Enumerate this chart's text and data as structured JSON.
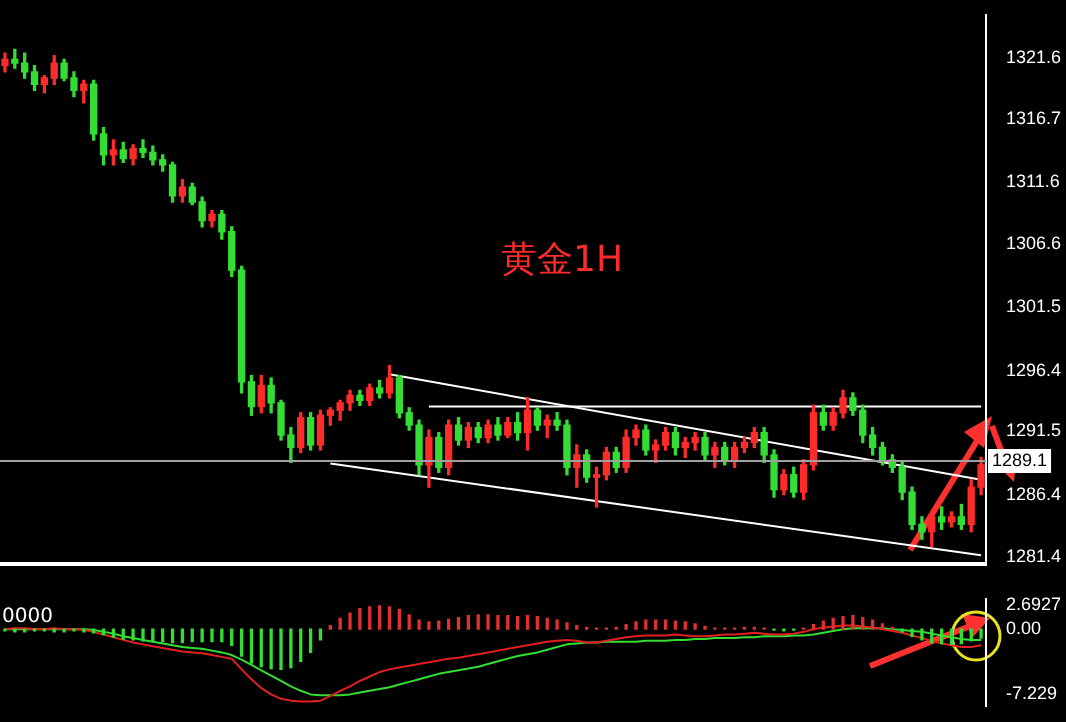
{
  "chart_data": [
    {
      "type": "candlestick",
      "categories": [
        null,
        null,
        null,
        null,
        null,
        null,
        null,
        null,
        null,
        null,
        null,
        null,
        null,
        null,
        null,
        null,
        null,
        null,
        null,
        null,
        null,
        null,
        null,
        null,
        null,
        null,
        null,
        null,
        null,
        null,
        null,
        null,
        null,
        null,
        null,
        null,
        null,
        null,
        null,
        null,
        null,
        null,
        null,
        null,
        null,
        null,
        null,
        null,
        null,
        null,
        null,
        null,
        null,
        null,
        null,
        null,
        null,
        null,
        null,
        null,
        null,
        null,
        null,
        null,
        null,
        null,
        null,
        null,
        null,
        null,
        null,
        null,
        null,
        null,
        null,
        null,
        null,
        null,
        null,
        null,
        null,
        null,
        null,
        null,
        null,
        null,
        null,
        null,
        null,
        null,
        null,
        null,
        null,
        null,
        null,
        null,
        null,
        null,
        null,
        null
      ],
      "ohlc": [
        [
          1321.0,
          1322.0,
          1320.5,
          1321.5
        ],
        [
          1321.5,
          1322.3,
          1320.8,
          1321.2
        ],
        [
          1321.2,
          1322.0,
          1320.0,
          1320.5
        ],
        [
          1320.5,
          1321.0,
          1319.0,
          1319.5
        ],
        [
          1319.5,
          1320.2,
          1318.8,
          1320.0
        ],
        [
          1320.0,
          1321.8,
          1319.5,
          1321.2
        ],
        [
          1321.2,
          1321.5,
          1319.8,
          1320.0
        ],
        [
          1320.0,
          1320.5,
          1318.5,
          1319.0
        ],
        [
          1319.0,
          1319.8,
          1318.0,
          1319.5
        ],
        [
          1319.5,
          1319.8,
          1315.0,
          1315.5
        ],
        [
          1315.5,
          1316.0,
          1313.0,
          1313.8
        ],
        [
          1313.8,
          1315.0,
          1313.0,
          1314.2
        ],
        [
          1314.2,
          1314.8,
          1313.2,
          1313.5
        ],
        [
          1313.5,
          1314.6,
          1313.0,
          1314.3
        ],
        [
          1314.3,
          1315.0,
          1313.6,
          1314.0
        ],
        [
          1314.0,
          1314.5,
          1313.0,
          1313.4
        ],
        [
          1313.4,
          1313.8,
          1312.5,
          1313.0
        ],
        [
          1313.0,
          1313.2,
          1310.0,
          1310.5
        ],
        [
          1310.5,
          1311.8,
          1310.0,
          1311.2
        ],
        [
          1311.2,
          1311.5,
          1309.8,
          1310.0
        ],
        [
          1310.0,
          1310.4,
          1308.0,
          1308.5
        ],
        [
          1308.5,
          1309.3,
          1308.0,
          1309.0
        ],
        [
          1309.0,
          1309.3,
          1307.0,
          1307.6
        ],
        [
          1307.6,
          1308.0,
          1304.0,
          1304.5
        ],
        [
          1304.5,
          1304.8,
          1294.6,
          1295.5
        ],
        [
          1295.5,
          1296.0,
          1292.8,
          1293.5
        ],
        [
          1293.5,
          1296.0,
          1293.0,
          1295.2
        ],
        [
          1295.2,
          1295.8,
          1293.0,
          1293.8
        ],
        [
          1293.8,
          1294.0,
          1290.8,
          1291.2
        ],
        [
          1291.2,
          1291.8,
          1289.0,
          1290.2
        ],
        [
          1290.2,
          1293.0,
          1289.8,
          1292.6
        ],
        [
          1292.6,
          1293.0,
          1290.0,
          1290.4
        ],
        [
          1290.4,
          1293.2,
          1290.0,
          1292.8
        ],
        [
          1292.8,
          1293.4,
          1292.0,
          1293.2
        ],
        [
          1293.2,
          1294.0,
          1292.4,
          1293.8
        ],
        [
          1293.8,
          1294.8,
          1293.2,
          1294.4
        ],
        [
          1294.4,
          1294.8,
          1293.6,
          1294.0
        ],
        [
          1294.0,
          1295.3,
          1293.6,
          1295.0
        ],
        [
          1295.0,
          1295.6,
          1294.2,
          1294.6
        ],
        [
          1294.6,
          1296.8,
          1294.2,
          1295.8
        ],
        [
          1295.8,
          1296.0,
          1292.6,
          1293.0
        ],
        [
          1293.0,
          1293.4,
          1291.6,
          1292.0
        ],
        [
          1292.0,
          1292.4,
          1288.0,
          1288.8
        ],
        [
          1288.8,
          1291.6,
          1287.0,
          1291.0
        ],
        [
          1291.0,
          1291.4,
          1288.2,
          1288.6
        ],
        [
          1288.6,
          1292.4,
          1288.0,
          1292.0
        ],
        [
          1292.0,
          1292.6,
          1290.4,
          1290.8
        ],
        [
          1290.8,
          1292.2,
          1290.2,
          1291.8
        ],
        [
          1291.8,
          1292.2,
          1290.6,
          1291.0
        ],
        [
          1291.0,
          1292.4,
          1290.6,
          1292.0
        ],
        [
          1292.0,
          1292.6,
          1290.8,
          1291.2
        ],
        [
          1291.2,
          1292.6,
          1291.0,
          1292.2
        ],
        [
          1292.2,
          1293.0,
          1290.8,
          1291.4
        ],
        [
          1291.4,
          1294.2,
          1290.0,
          1293.2
        ],
        [
          1293.2,
          1293.4,
          1291.6,
          1292.0
        ],
        [
          1292.0,
          1292.8,
          1291.0,
          1292.4
        ],
        [
          1292.4,
          1293.0,
          1291.6,
          1292.0
        ],
        [
          1292.0,
          1292.4,
          1288.0,
          1288.6
        ],
        [
          1288.6,
          1290.4,
          1287.0,
          1289.6
        ],
        [
          1289.6,
          1290.0,
          1287.4,
          1287.8
        ],
        [
          1287.8,
          1288.6,
          1285.4,
          1288.0
        ],
        [
          1288.0,
          1290.2,
          1287.6,
          1289.8
        ],
        [
          1289.8,
          1290.2,
          1288.2,
          1288.6
        ],
        [
          1288.6,
          1291.6,
          1288.2,
          1291.0
        ],
        [
          1291.0,
          1292.0,
          1290.4,
          1291.6
        ],
        [
          1291.6,
          1292.0,
          1289.6,
          1290.0
        ],
        [
          1290.0,
          1290.8,
          1289.0,
          1290.4
        ],
        [
          1290.4,
          1291.8,
          1290.0,
          1291.4
        ],
        [
          1291.4,
          1291.8,
          1289.6,
          1290.2
        ],
        [
          1290.2,
          1291.0,
          1289.4,
          1290.6
        ],
        [
          1290.6,
          1291.4,
          1290.0,
          1291.0
        ],
        [
          1291.0,
          1291.4,
          1289.2,
          1289.6
        ],
        [
          1289.6,
          1290.6,
          1288.6,
          1290.2
        ],
        [
          1290.2,
          1290.6,
          1288.8,
          1289.2
        ],
        [
          1289.2,
          1290.6,
          1288.6,
          1290.2
        ],
        [
          1290.2,
          1291.0,
          1289.8,
          1290.6
        ],
        [
          1290.6,
          1291.8,
          1290.2,
          1291.4
        ],
        [
          1291.4,
          1291.8,
          1289.0,
          1289.6
        ],
        [
          1289.6,
          1290.0,
          1286.2,
          1286.8
        ],
        [
          1286.8,
          1288.4,
          1286.4,
          1288.0
        ],
        [
          1288.0,
          1288.6,
          1286.2,
          1286.6
        ],
        [
          1286.6,
          1289.2,
          1286.0,
          1288.8
        ],
        [
          1288.8,
          1293.6,
          1288.4,
          1293.0
        ],
        [
          1293.0,
          1293.6,
          1291.6,
          1292.0
        ],
        [
          1292.0,
          1293.4,
          1291.6,
          1293.0
        ],
        [
          1293.0,
          1294.8,
          1292.6,
          1294.2
        ],
        [
          1294.2,
          1294.6,
          1292.8,
          1293.2
        ],
        [
          1293.2,
          1293.6,
          1290.6,
          1291.2
        ],
        [
          1291.2,
          1291.8,
          1289.6,
          1290.2
        ],
        [
          1290.2,
          1290.6,
          1288.8,
          1289.2
        ],
        [
          1289.2,
          1289.6,
          1288.2,
          1288.6
        ],
        [
          1288.6,
          1289.0,
          1286.0,
          1286.6
        ],
        [
          1286.6,
          1287.0,
          1283.6,
          1284.0
        ],
        [
          1284.0,
          1284.6,
          1282.8,
          1283.4
        ],
        [
          1283.4,
          1285.0,
          1282.2,
          1284.6
        ],
        [
          1284.6,
          1285.4,
          1283.6,
          1284.2
        ],
        [
          1284.2,
          1285.0,
          1283.8,
          1284.6
        ],
        [
          1284.6,
          1285.6,
          1283.6,
          1284.0
        ],
        [
          1284.0,
          1287.6,
          1283.4,
          1287.0
        ],
        [
          1287.0,
          1289.4,
          1286.4,
          1288.8
        ]
      ],
      "colors": [
        "#ff2a2a",
        "#33dd33",
        "#33dd33",
        "#33dd33",
        "#ff2a2a",
        "#ff2a2a",
        "#33dd33",
        "#33dd33",
        "#ff2a2a",
        "#33dd33",
        "#33dd33",
        "#ff2a2a",
        "#33dd33",
        "#ff2a2a",
        "#33dd33",
        "#33dd33",
        "#33dd33",
        "#33dd33",
        "#ff2a2a",
        "#33dd33",
        "#33dd33",
        "#ff2a2a",
        "#33dd33",
        "#33dd33",
        "#33dd33",
        "#33dd33",
        "#ff2a2a",
        "#33dd33",
        "#33dd33",
        "#33dd33",
        "#ff2a2a",
        "#33dd33",
        "#ff2a2a",
        "#ff2a2a",
        "#ff2a2a",
        "#ff2a2a",
        "#33dd33",
        "#ff2a2a",
        "#33dd33",
        "#ff2a2a",
        "#33dd33",
        "#33dd33",
        "#33dd33",
        "#ff2a2a",
        "#33dd33",
        "#ff2a2a",
        "#33dd33",
        "#ff2a2a",
        "#33dd33",
        "#ff2a2a",
        "#33dd33",
        "#ff2a2a",
        "#33dd33",
        "#ff2a2a",
        "#33dd33",
        "#ff2a2a",
        "#33dd33",
        "#33dd33",
        "#ff2a2a",
        "#33dd33",
        "#ff2a2a",
        "#ff2a2a",
        "#33dd33",
        "#ff2a2a",
        "#ff2a2a",
        "#33dd33",
        "#ff2a2a",
        "#ff2a2a",
        "#33dd33",
        "#ff2a2a",
        "#ff2a2a",
        "#33dd33",
        "#ff2a2a",
        "#33dd33",
        "#ff2a2a",
        "#ff2a2a",
        "#ff2a2a",
        "#33dd33",
        "#33dd33",
        "#ff2a2a",
        "#33dd33",
        "#ff2a2a",
        "#ff2a2a",
        "#33dd33",
        "#ff2a2a",
        "#ff2a2a",
        "#33dd33",
        "#33dd33",
        "#33dd33",
        "#33dd33",
        "#33dd33",
        "#33dd33",
        "#33dd33",
        "#33dd33",
        "#ff2a2a",
        "#33dd33",
        "#ff2a2a",
        "#33dd33",
        "#ff2a2a",
        "#ff2a2a"
      ],
      "series": [
        {
          "type": "line",
          "color": "#ffffff",
          "values": [
            null,
            null,
            null,
            null,
            null,
            null,
            null,
            null,
            null,
            null,
            null,
            null,
            null,
            null,
            null,
            null,
            null,
            null,
            null,
            null,
            null,
            null,
            null,
            null,
            null,
            null,
            null,
            null,
            null,
            null,
            null,
            null,
            null,
            null,
            null,
            null,
            null,
            null,
            null,
            1296.1,
            null,
            null,
            null,
            null,
            null,
            null,
            null,
            null,
            null,
            null,
            null,
            null,
            null,
            null,
            null,
            null,
            null,
            null,
            null,
            null,
            null,
            null,
            null,
            null,
            null,
            null,
            null,
            null,
            null,
            null,
            null,
            null,
            null,
            null,
            null,
            null,
            null,
            null,
            null,
            null,
            null,
            null,
            null,
            null,
            null,
            null,
            null,
            null,
            null,
            null,
            null,
            null,
            null,
            null,
            null,
            null,
            null,
            null,
            null,
            1287.6
          ]
        },
        {
          "type": "line",
          "color": "#ffffff",
          "values": [
            null,
            null,
            null,
            null,
            null,
            null,
            null,
            null,
            null,
            null,
            null,
            null,
            null,
            null,
            null,
            null,
            null,
            null,
            null,
            null,
            null,
            null,
            null,
            null,
            null,
            null,
            null,
            null,
            null,
            null,
            null,
            null,
            null,
            1288.9,
            null,
            null,
            null,
            null,
            null,
            null,
            null,
            null,
            null,
            null,
            null,
            null,
            null,
            null,
            null,
            null,
            null,
            null,
            null,
            null,
            null,
            null,
            null,
            null,
            null,
            null,
            null,
            null,
            null,
            null,
            null,
            null,
            null,
            null,
            null,
            null,
            null,
            null,
            null,
            null,
            null,
            null,
            null,
            null,
            null,
            null,
            null,
            null,
            null,
            null,
            null,
            null,
            null,
            null,
            null,
            null,
            null,
            null,
            null,
            null,
            null,
            null,
            null,
            null,
            null,
            1281.5
          ]
        },
        {
          "type": "line",
          "color": "#ffffff",
          "values": [
            null,
            null,
            null,
            null,
            null,
            null,
            null,
            null,
            null,
            null,
            null,
            null,
            null,
            null,
            null,
            null,
            null,
            null,
            null,
            null,
            null,
            null,
            null,
            null,
            null,
            null,
            null,
            null,
            null,
            null,
            null,
            null,
            null,
            null,
            null,
            null,
            null,
            null,
            null,
            null,
            null,
            null,
            null,
            1293.5,
            null,
            null,
            null,
            null,
            null,
            null,
            null,
            null,
            null,
            null,
            null,
            null,
            null,
            null,
            null,
            null,
            null,
            null,
            null,
            null,
            null,
            null,
            null,
            null,
            null,
            null,
            null,
            null,
            null,
            null,
            null,
            null,
            null,
            null,
            null,
            null,
            null,
            null,
            null,
            null,
            null,
            null,
            null,
            null,
            null,
            null,
            null,
            null,
            null,
            null,
            null,
            null,
            null,
            null,
            null,
            1293.5
          ]
        }
      ],
      "ylim": [
        1280.8,
        1325.1
      ],
      "yticks": [
        {
          "value": 1321.6,
          "label": "1321.6"
        },
        {
          "value": 1316.7,
          "label": "1316.7"
        },
        {
          "value": 1311.6,
          "label": "1311.6"
        },
        {
          "value": 1306.6,
          "label": "1306.6"
        },
        {
          "value": 1301.5,
          "label": "1301.5"
        },
        {
          "value": 1296.4,
          "label": "1296.4"
        },
        {
          "value": 1291.5,
          "label": "1291.5"
        },
        {
          "value": 1286.4,
          "label": "1286.4"
        },
        {
          "value": 1281.4,
          "label": "1281.4"
        }
      ],
      "ref_lines": [
        {
          "axis": "y",
          "value": 1289.1,
          "label": "1289.1",
          "color": "#a0a0a0"
        }
      ],
      "annotations": [
        "黄金1H"
      ],
      "tick_labels": "y",
      "grid": false
    },
    {
      "type": "bar",
      "categories": [
        null,
        null,
        null,
        null,
        null,
        null,
        null,
        null,
        null,
        null,
        null,
        null,
        null,
        null,
        null,
        null,
        null,
        null,
        null,
        null,
        null,
        null,
        null,
        null,
        null,
        null,
        null,
        null,
        null,
        null,
        null,
        null,
        null,
        null,
        null,
        null,
        null,
        null,
        null,
        null,
        null,
        null,
        null,
        null,
        null,
        null,
        null,
        null,
        null,
        null,
        null,
        null,
        null,
        null,
        null,
        null,
        null,
        null,
        null,
        null,
        null,
        null,
        null,
        null,
        null,
        null,
        null,
        null,
        null,
        null,
        null,
        null,
        null,
        null,
        null,
        null,
        null,
        null,
        null,
        null,
        null,
        null,
        null,
        null,
        null,
        null,
        null,
        null,
        null,
        null,
        null,
        null,
        null,
        null,
        null,
        null,
        null,
        null,
        null,
        null
      ],
      "series": [
        {
          "type": "bar",
          "values": [
            -0.2,
            -0.3,
            -0.3,
            -0.2,
            -0.2,
            -0.3,
            -0.3,
            -0.2,
            -0.3,
            -0.4,
            -0.6,
            -0.9,
            -1.1,
            -1.2,
            -1.3,
            -1.3,
            -1.4,
            -1.5,
            -1.5,
            -1.4,
            -1.4,
            -1.4,
            -1.4,
            -1.8,
            -3.0,
            -3.8,
            -4.2,
            -4.4,
            -4.5,
            -4.3,
            -3.6,
            -2.6,
            -1.2,
            0.4,
            1.2,
            1.8,
            2.3,
            2.5,
            2.6,
            2.5,
            2.2,
            1.6,
            1.0,
            0.8,
            0.9,
            1.1,
            1.3,
            1.5,
            1.6,
            1.6,
            1.5,
            1.5,
            1.4,
            1.5,
            1.4,
            1.2,
            1.0,
            0.7,
            0.4,
            0.2,
            0.1,
            0.1,
            0.2,
            0.5,
            0.8,
            1.0,
            1.0,
            1.0,
            0.9,
            0.8,
            0.6,
            0.3,
            0.1,
            0.1,
            0.1,
            0.2,
            0.2,
            0.1,
            -0.1,
            -0.2,
            -0.1,
            0.1,
            0.5,
            0.9,
            1.2,
            1.4,
            1.5,
            1.3,
            1.0,
            0.6,
            0.2,
            -0.3,
            -0.8,
            -1.2,
            -1.5,
            -1.6,
            -1.7,
            -1.6,
            -1.3,
            -1.0
          ],
          "colors": [
            "#33dd33",
            "#33dd33",
            "#33dd33",
            "#33dd33",
            "#33dd33",
            "#33dd33",
            "#33dd33",
            "#33dd33",
            "#33dd33",
            "#33dd33",
            "#33dd33",
            "#33dd33",
            "#33dd33",
            "#33dd33",
            "#33dd33",
            "#33dd33",
            "#33dd33",
            "#33dd33",
            "#33dd33",
            "#33dd33",
            "#33dd33",
            "#33dd33",
            "#33dd33",
            "#33dd33",
            "#33dd33",
            "#33dd33",
            "#33dd33",
            "#33dd33",
            "#33dd33",
            "#33dd33",
            "#33dd33",
            "#33dd33",
            "#33dd33",
            "#e03030",
            "#e03030",
            "#e03030",
            "#e03030",
            "#e03030",
            "#e03030",
            "#e03030",
            "#e03030",
            "#e03030",
            "#e03030",
            "#e03030",
            "#e03030",
            "#e03030",
            "#e03030",
            "#e03030",
            "#e03030",
            "#e03030",
            "#e03030",
            "#e03030",
            "#e03030",
            "#e03030",
            "#e03030",
            "#e03030",
            "#e03030",
            "#e03030",
            "#e03030",
            "#e03030",
            "#e03030",
            "#e03030",
            "#e03030",
            "#e03030",
            "#e03030",
            "#e03030",
            "#e03030",
            "#e03030",
            "#e03030",
            "#e03030",
            "#e03030",
            "#e03030",
            "#e03030",
            "#e03030",
            "#e03030",
            "#e03030",
            "#e03030",
            "#e03030",
            "#33dd33",
            "#33dd33",
            "#33dd33",
            "#e03030",
            "#e03030",
            "#e03030",
            "#e03030",
            "#e03030",
            "#e03030",
            "#e03030",
            "#e03030",
            "#e03030",
            "#e03030",
            "#33dd33",
            "#33dd33",
            "#33dd33",
            "#33dd33",
            "#33dd33",
            "#33dd33",
            "#33dd33",
            "#33dd33",
            "#33dd33"
          ]
        },
        {
          "type": "line",
          "color": "#e02020",
          "values": [
            0.0,
            0.1,
            0.1,
            0.0,
            0.0,
            0.1,
            0.0,
            0.0,
            -0.1,
            -0.3,
            -0.6,
            -0.9,
            -1.2,
            -1.5,
            -1.7,
            -1.9,
            -2.1,
            -2.3,
            -2.5,
            -2.6,
            -2.7,
            -2.9,
            -3.1,
            -3.3,
            -4.5,
            -5.6,
            -6.6,
            -7.3,
            -7.8,
            -8.0,
            -8.1,
            -8.1,
            -8.0,
            -7.5,
            -6.9,
            -6.4,
            -5.8,
            -5.3,
            -4.8,
            -4.5,
            -4.3,
            -4.1,
            -3.9,
            -3.7,
            -3.5,
            -3.3,
            -3.2,
            -3.0,
            -2.8,
            -2.6,
            -2.4,
            -2.2,
            -2.0,
            -1.8,
            -1.6,
            -1.4,
            -1.3,
            -1.2,
            -1.3,
            -1.5,
            -1.5,
            -1.3,
            -1.1,
            -0.9,
            -0.8,
            -0.7,
            -0.7,
            -0.7,
            -0.6,
            -0.7,
            -0.8,
            -0.8,
            -0.7,
            -0.6,
            -0.6,
            -0.5,
            -0.4,
            -0.5,
            -0.6,
            -0.6,
            -0.5,
            -0.3,
            0.0,
            0.2,
            0.3,
            0.4,
            0.4,
            0.3,
            0.2,
            0.0,
            -0.2,
            -0.4,
            -0.7,
            -1.0,
            -1.3,
            -1.6,
            -1.8,
            -2.0,
            -2.0,
            -1.8
          ]
        },
        {
          "type": "line",
          "color": "#33dd33",
          "values": [
            0.0,
            0.0,
            0.0,
            0.0,
            0.0,
            0.0,
            0.0,
            0.0,
            0.0,
            -0.1,
            -0.3,
            -0.5,
            -0.8,
            -1.0,
            -1.2,
            -1.4,
            -1.6,
            -1.8,
            -2.0,
            -2.1,
            -2.2,
            -2.4,
            -2.6,
            -2.9,
            -3.4,
            -4.0,
            -4.6,
            -5.2,
            -5.8,
            -6.4,
            -6.9,
            -7.3,
            -7.4,
            -7.4,
            -7.4,
            -7.3,
            -7.1,
            -6.9,
            -6.7,
            -6.5,
            -6.2,
            -5.9,
            -5.6,
            -5.3,
            -5.0,
            -4.8,
            -4.6,
            -4.4,
            -4.2,
            -3.9,
            -3.6,
            -3.3,
            -3.0,
            -2.8,
            -2.6,
            -2.3,
            -2.0,
            -1.7,
            -1.6,
            -1.5,
            -1.5,
            -1.4,
            -1.4,
            -1.4,
            -1.4,
            -1.3,
            -1.3,
            -1.3,
            -1.2,
            -1.2,
            -1.1,
            -1.1,
            -1.0,
            -1.0,
            -1.0,
            -0.9,
            -0.9,
            -0.8,
            -0.8,
            -0.8,
            -0.7,
            -0.7,
            -0.6,
            -0.4,
            -0.2,
            0.0,
            0.1,
            0.1,
            0.1,
            0.1,
            0.0,
            -0.1,
            -0.2,
            -0.3,
            -0.5,
            -0.7,
            -0.9,
            -1.1,
            -1.2,
            -1.2
          ]
        }
      ],
      "ylim": [
        -8.6,
        3.4
      ],
      "yticks": [
        2.6927,
        {
          "value": 0,
          "label": "0.00"
        },
        -7.229
      ],
      "annotations": [
        "0000"
      ],
      "tick_labels": "y",
      "grid": false
    }
  ]
}
